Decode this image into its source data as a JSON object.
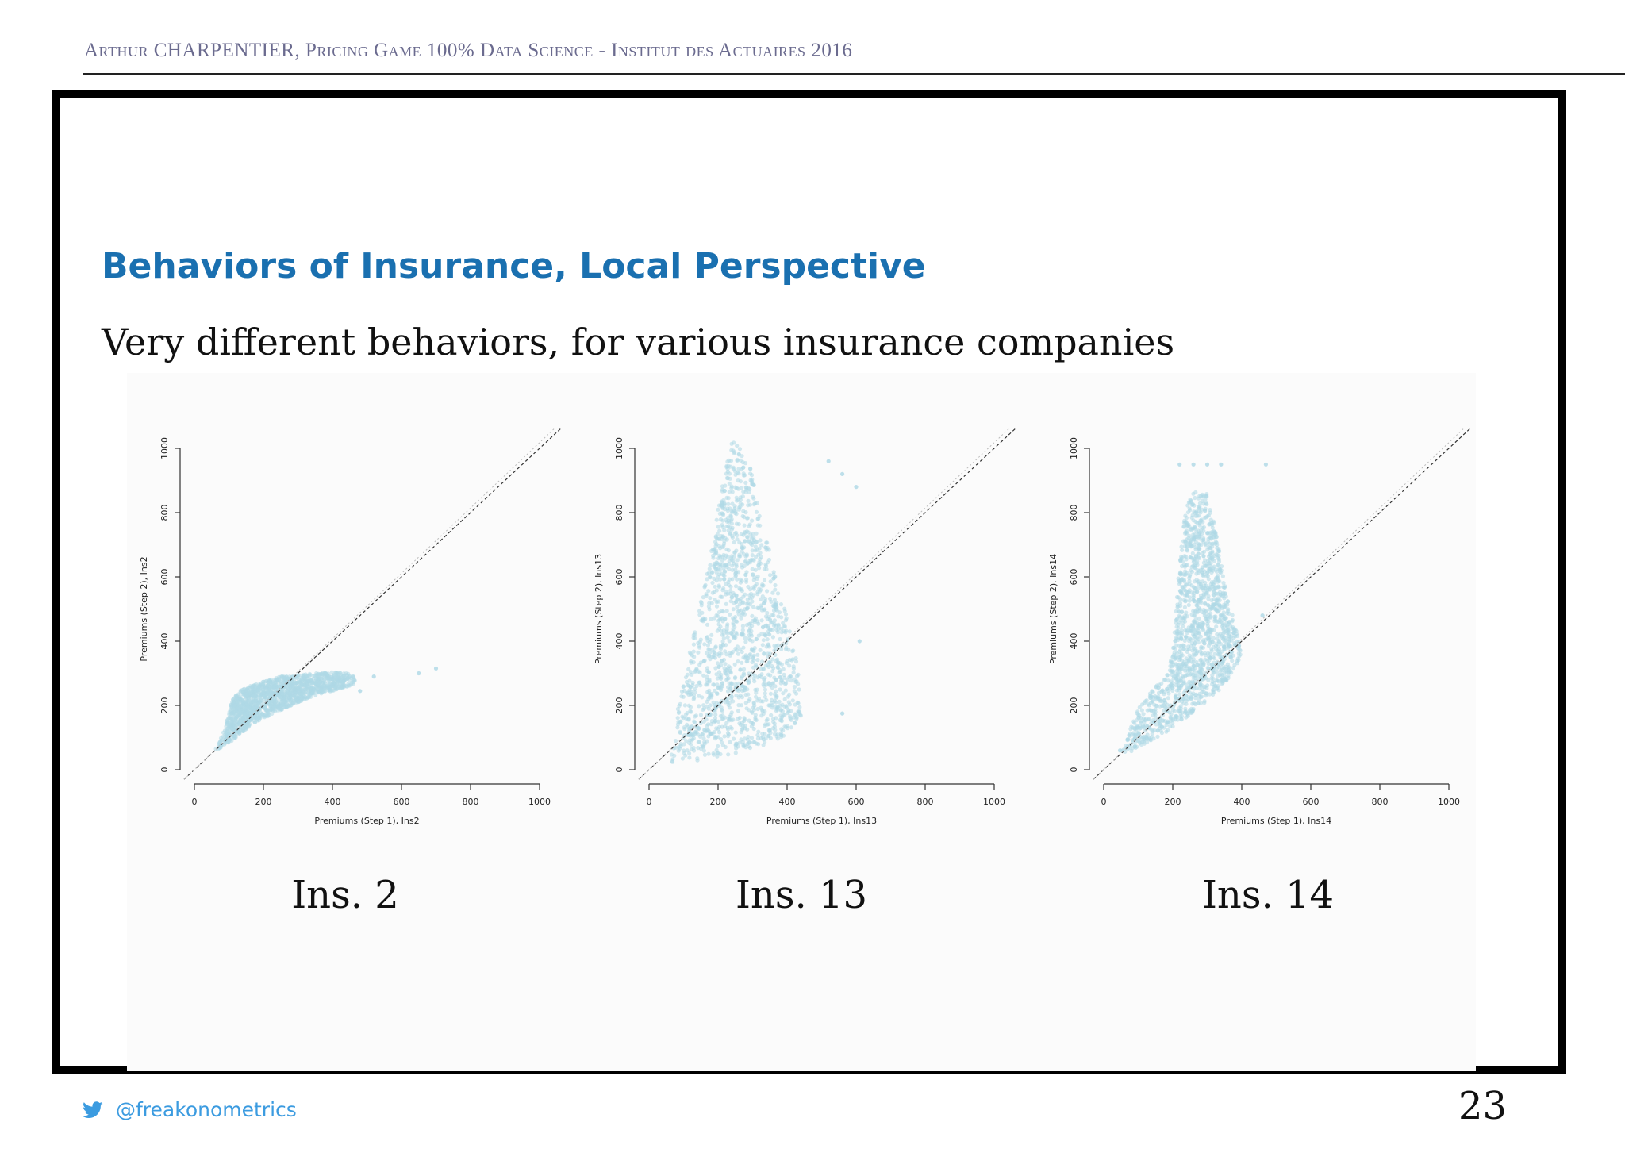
{
  "header": {
    "text": "Arthur CHARPENTIER, Pricing Game 100% Data Science - Institut des Actuaires 2016"
  },
  "slide": {
    "title": "Behaviors of Insurance, Local Perspective",
    "subtitle": "Very different behaviors, for various insurance companies"
  },
  "footer": {
    "handle": "@freakonometrics",
    "page_number": "23",
    "icon": "twitter-bird-icon"
  },
  "colors": {
    "points": "#aed8e6",
    "title": "#1a70b0",
    "handle": "#3b9be0"
  },
  "chart_data": [
    {
      "type": "scatter",
      "caption": "Ins. 2",
      "xlabel": "Premiums (Step 1), Ins2",
      "ylabel": "Premiums (Step 2), Ins2",
      "xlim": [
        0,
        1000
      ],
      "ylim": [
        0,
        1000
      ],
      "xticks": [
        "0",
        "200",
        "400",
        "600",
        "800",
        "1000"
      ],
      "yticks": [
        "0",
        "200",
        "400",
        "600",
        "800",
        "1000"
      ],
      "reference_lines": [
        "y = x (dashed)",
        "light dotted line"
      ],
      "point_cloud": [
        {
          "x": 60,
          "y": 60
        },
        {
          "x": 75,
          "y": 95
        },
        {
          "x": 90,
          "y": 130
        },
        {
          "x": 100,
          "y": 180
        },
        {
          "x": 110,
          "y": 220
        },
        {
          "x": 130,
          "y": 245
        },
        {
          "x": 160,
          "y": 260
        },
        {
          "x": 200,
          "y": 275
        },
        {
          "x": 250,
          "y": 290
        },
        {
          "x": 300,
          "y": 295
        },
        {
          "x": 350,
          "y": 300
        },
        {
          "x": 400,
          "y": 305
        },
        {
          "x": 450,
          "y": 300
        },
        {
          "x": 470,
          "y": 285
        },
        {
          "x": 460,
          "y": 265
        },
        {
          "x": 420,
          "y": 250
        },
        {
          "x": 360,
          "y": 235
        },
        {
          "x": 300,
          "y": 210
        },
        {
          "x": 240,
          "y": 180
        },
        {
          "x": 180,
          "y": 150
        },
        {
          "x": 130,
          "y": 110
        },
        {
          "x": 95,
          "y": 75
        }
      ],
      "outliers": [
        {
          "x": 520,
          "y": 290
        },
        {
          "x": 650,
          "y": 300
        },
        {
          "x": 700,
          "y": 315
        },
        {
          "x": 480,
          "y": 245
        }
      ]
    },
    {
      "type": "scatter",
      "caption": "Ins. 13",
      "xlabel": "Premiums (Step 1), Ins13",
      "ylabel": "Premiums (Step 2), Ins13",
      "xlim": [
        0,
        1000
      ],
      "ylim": [
        0,
        1000
      ],
      "xticks": [
        "0",
        "200",
        "400",
        "600",
        "800",
        "1000"
      ],
      "yticks": [
        "0",
        "200",
        "400",
        "600",
        "800",
        "1000"
      ],
      "reference_lines": [
        "y = x (dashed)",
        "light dotted line"
      ],
      "point_cloud": [
        {
          "x": 60,
          "y": 20
        },
        {
          "x": 150,
          "y": 30
        },
        {
          "x": 250,
          "y": 50
        },
        {
          "x": 330,
          "y": 75
        },
        {
          "x": 400,
          "y": 105
        },
        {
          "x": 440,
          "y": 160
        },
        {
          "x": 440,
          "y": 260
        },
        {
          "x": 420,
          "y": 380
        },
        {
          "x": 400,
          "y": 480
        },
        {
          "x": 360,
          "y": 620
        },
        {
          "x": 330,
          "y": 780
        },
        {
          "x": 300,
          "y": 920
        },
        {
          "x": 270,
          "y": 1020
        },
        {
          "x": 240,
          "y": 1030
        },
        {
          "x": 215,
          "y": 930
        },
        {
          "x": 195,
          "y": 780
        },
        {
          "x": 170,
          "y": 620
        },
        {
          "x": 140,
          "y": 470
        },
        {
          "x": 110,
          "y": 330
        },
        {
          "x": 85,
          "y": 200
        },
        {
          "x": 65,
          "y": 90
        }
      ],
      "outliers": [
        {
          "x": 560,
          "y": 175
        },
        {
          "x": 600,
          "y": 880
        },
        {
          "x": 560,
          "y": 920
        },
        {
          "x": 520,
          "y": 960
        },
        {
          "x": 610,
          "y": 400
        }
      ]
    },
    {
      "type": "scatter",
      "caption": "Ins. 14",
      "xlabel": "Premiums (Step 1), Ins14",
      "ylabel": "Premiums (Step 2), Ins14",
      "xlim": [
        0,
        1000
      ],
      "ylim": [
        0,
        1000
      ],
      "xticks": [
        "0",
        "200",
        "400",
        "600",
        "800",
        "1000"
      ],
      "yticks": [
        "0",
        "200",
        "400",
        "600",
        "800",
        "1000"
      ],
      "reference_lines": [
        "y = x (dashed)",
        "light dotted line"
      ],
      "point_cloud": [
        {
          "x": 40,
          "y": 50
        },
        {
          "x": 70,
          "y": 110
        },
        {
          "x": 100,
          "y": 190
        },
        {
          "x": 140,
          "y": 250
        },
        {
          "x": 180,
          "y": 300
        },
        {
          "x": 200,
          "y": 380
        },
        {
          "x": 210,
          "y": 500
        },
        {
          "x": 220,
          "y": 650
        },
        {
          "x": 235,
          "y": 800
        },
        {
          "x": 260,
          "y": 870
        },
        {
          "x": 300,
          "y": 860
        },
        {
          "x": 330,
          "y": 720
        },
        {
          "x": 350,
          "y": 580
        },
        {
          "x": 380,
          "y": 450
        },
        {
          "x": 400,
          "y": 360
        },
        {
          "x": 370,
          "y": 290
        },
        {
          "x": 320,
          "y": 230
        },
        {
          "x": 260,
          "y": 180
        },
        {
          "x": 200,
          "y": 130
        },
        {
          "x": 140,
          "y": 90
        },
        {
          "x": 80,
          "y": 55
        }
      ],
      "outliers": [
        {
          "x": 220,
          "y": 950
        },
        {
          "x": 260,
          "y": 950
        },
        {
          "x": 300,
          "y": 950
        },
        {
          "x": 340,
          "y": 950
        },
        {
          "x": 470,
          "y": 950
        },
        {
          "x": 460,
          "y": 480
        }
      ]
    }
  ]
}
